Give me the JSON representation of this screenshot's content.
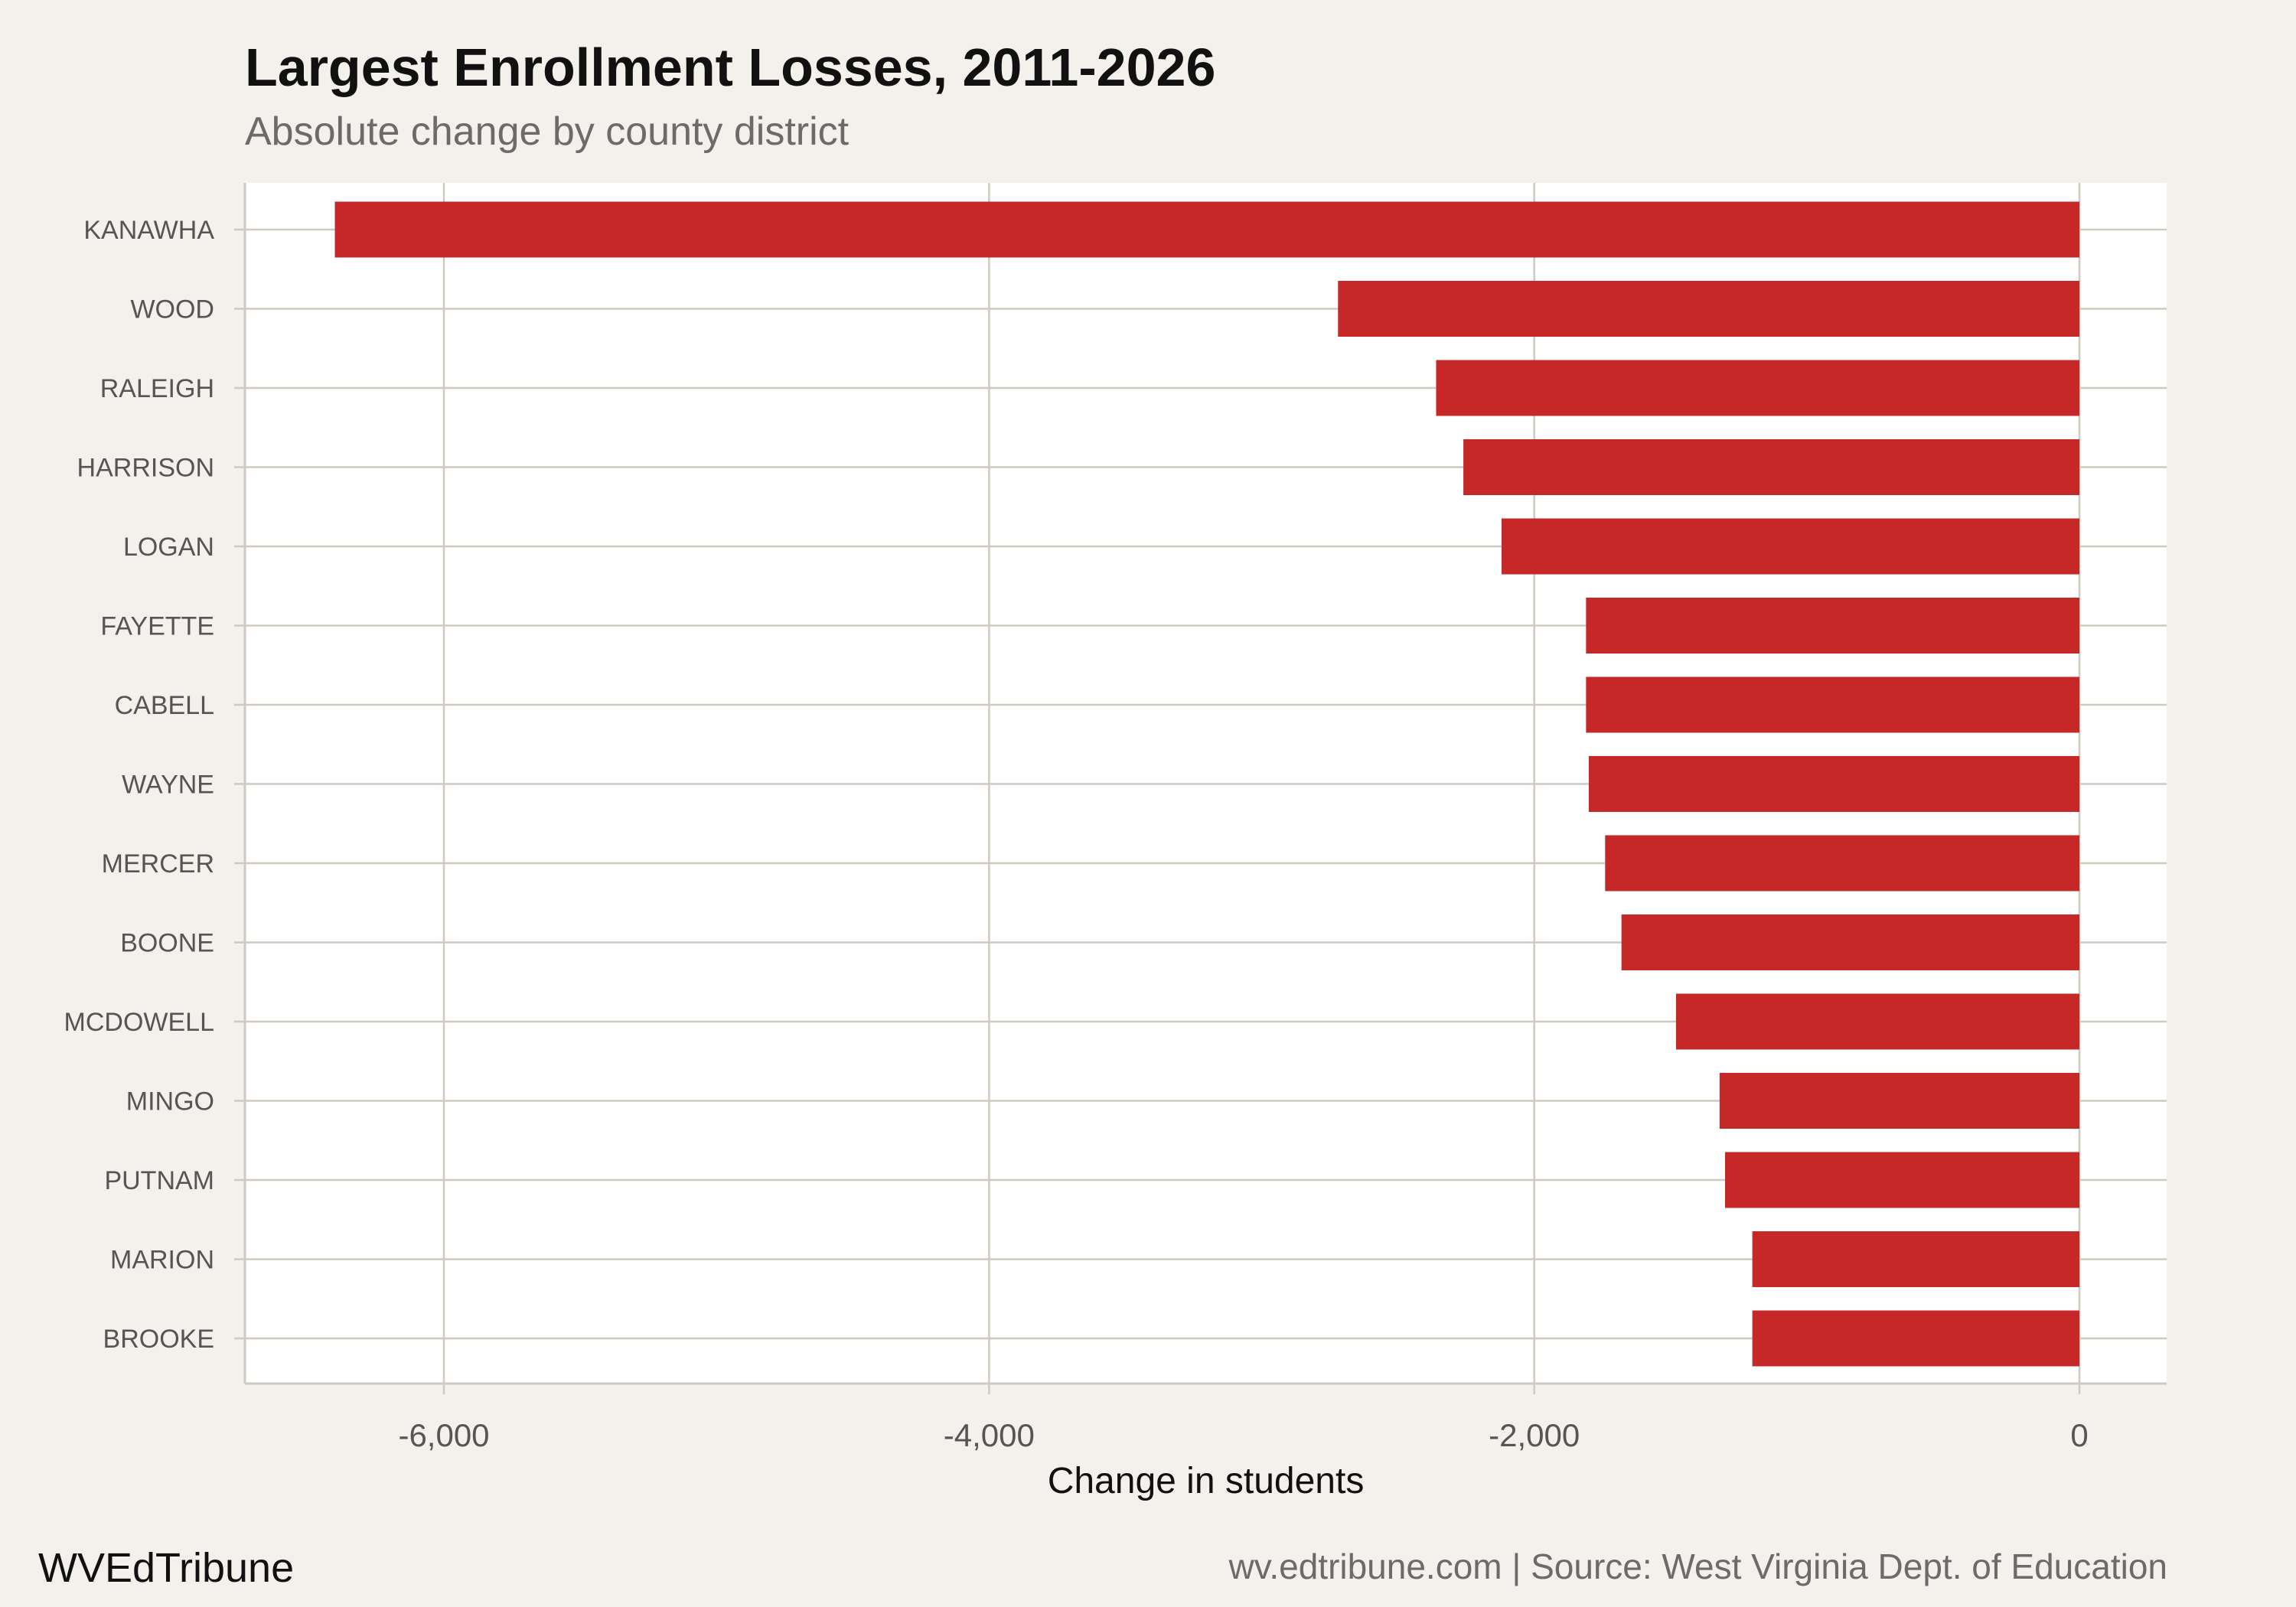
{
  "title": "Largest Enrollment Losses, 2011-2026",
  "subtitle": "Absolute change by county district",
  "brand": "WVEdTribune",
  "source": "wv.edtribune.com | Source: West Virginia Dept. of Education",
  "colors": {
    "bar": "#c62828",
    "grid": "#cfc9bf",
    "background": "#f4f1ec",
    "panel": "#ffffff"
  },
  "chart_data": {
    "type": "bar",
    "orientation": "horizontal",
    "categories": [
      "KANAWHA",
      "WOOD",
      "RALEIGH",
      "HARRISON",
      "LOGAN",
      "FAYETTE",
      "CABELL",
      "WAYNE",
      "MERCER",
      "BOONE",
      "MCDOWELL",
      "MINGO",
      "PUTNAM",
      "MARION",
      "BROOKE"
    ],
    "values": [
      -6400,
      -2720,
      -2360,
      -2260,
      -2120,
      -1810,
      -1810,
      -1800,
      -1740,
      -1680,
      -1480,
      -1320,
      -1300,
      -1200,
      -1200
    ],
    "xlabel": "Change in students",
    "ylabel": "",
    "xlim": [
      -6730,
      320
    ],
    "xticks": [
      -6000,
      -4000,
      -2000,
      0
    ],
    "xtick_labels": [
      "-6,000",
      "-4,000",
      "-2,000",
      "0"
    ],
    "grid": true
  }
}
